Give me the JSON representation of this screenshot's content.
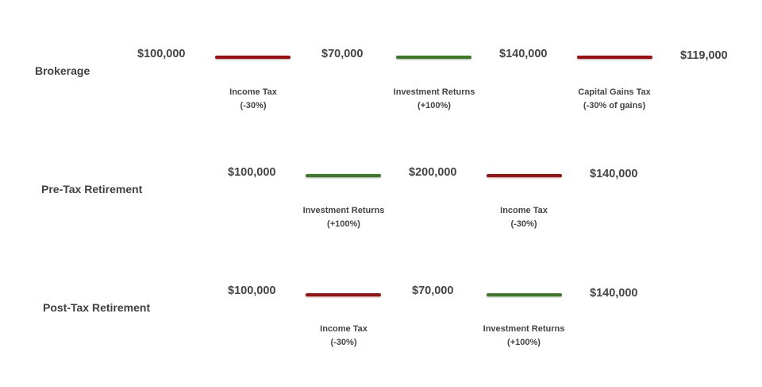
{
  "colors": {
    "negative": "#a00f0f",
    "positive": "#3c7a25"
  },
  "rows": [
    {
      "label": "Brokerage",
      "amounts": [
        "$100,000",
        "$70,000",
        "$140,000",
        "$119,000"
      ],
      "steps": [
        {
          "name": "Income Tax",
          "detail": "(-30%)",
          "kind": "negative"
        },
        {
          "name": "Investment Returns",
          "detail": "(+100%)",
          "kind": "positive"
        },
        {
          "name": "Capital Gains Tax",
          "detail": "(-30% of gains)",
          "kind": "negative"
        }
      ]
    },
    {
      "label": "Pre-Tax Retirement",
      "amounts": [
        "$100,000",
        "$200,000",
        "$140,000"
      ],
      "steps": [
        {
          "name": "Investment Returns",
          "detail": "(+100%)",
          "kind": "positive"
        },
        {
          "name": "Income Tax",
          "detail": "(-30%)",
          "kind": "negative"
        }
      ]
    },
    {
      "label": "Post-Tax Retirement",
      "amounts": [
        "$100,000",
        "$70,000",
        "$140,000"
      ],
      "steps": [
        {
          "name": "Income Tax",
          "detail": "(-30%)",
          "kind": "negative"
        },
        {
          "name": "Investment Returns",
          "detail": "(+100%)",
          "kind": "positive"
        }
      ]
    }
  ]
}
